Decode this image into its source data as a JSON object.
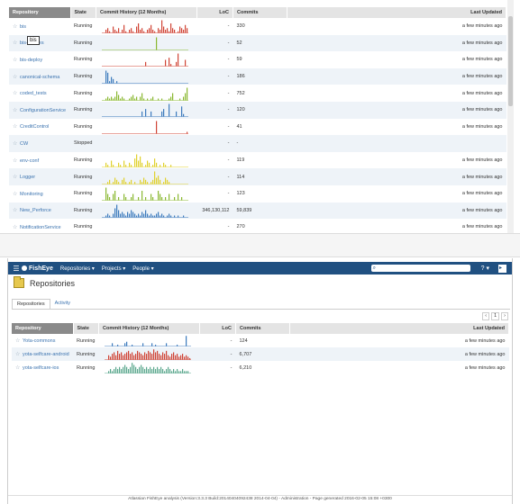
{
  "colors": {
    "brand": "#205081",
    "link": "#3b73af",
    "red": "#d04436",
    "blue": "#3d7bbd",
    "green": "#8ab831",
    "yellow": "#e0d12e",
    "teal": "#5aa78d",
    "gray": "#999999"
  },
  "columns": {
    "repository": "Repository",
    "state": "State",
    "commit_history": "Commit History (12 Months)",
    "loc": "LoC",
    "commits": "Commits",
    "last_updated": "Last Updated"
  },
  "tooltip": "bis",
  "top_rows": [
    {
      "name": "bis",
      "state": "Running",
      "loc": "-",
      "commits": "330",
      "updated": "a few minutes ago",
      "color": "red",
      "bars": [
        0,
        0,
        2,
        3,
        1,
        0,
        4,
        2,
        1,
        3,
        0,
        2,
        5,
        1,
        0,
        2,
        3,
        1,
        0,
        4,
        6,
        2,
        3,
        1,
        0,
        2,
        3,
        5,
        2,
        1,
        0,
        3,
        2,
        8,
        4,
        2,
        3,
        1,
        6,
        3,
        2,
        0,
        1,
        4,
        3,
        2,
        5,
        3
      ]
    },
    {
      "name": "bis-images",
      "state": "Running",
      "loc": "-",
      "commits": "52",
      "updated": "a few minutes ago",
      "color": "green",
      "bars": [
        0,
        0,
        0,
        0,
        0,
        0,
        0,
        0,
        0,
        0,
        0,
        0,
        0,
        0,
        0,
        0,
        0,
        0,
        0,
        0,
        0,
        0,
        0,
        0,
        0,
        0,
        0,
        0,
        0,
        0,
        8,
        0,
        0,
        0,
        0,
        0,
        0,
        0,
        0,
        0,
        0,
        0,
        0,
        0,
        0,
        0,
        0,
        0
      ]
    },
    {
      "name": "bis-deploy",
      "state": "Running",
      "loc": "-",
      "commits": "59",
      "updated": "a few minutes ago",
      "color": "red",
      "bars": [
        0,
        0,
        0,
        0,
        0,
        0,
        0,
        0,
        0,
        0,
        0,
        0,
        0,
        0,
        0,
        0,
        0,
        0,
        0,
        0,
        0,
        0,
        0,
        0,
        2,
        0,
        0,
        0,
        0,
        0,
        0,
        0,
        0,
        0,
        0,
        3,
        0,
        4,
        1,
        0,
        0,
        2,
        6,
        0,
        0,
        0,
        3,
        0
      ]
    },
    {
      "name": "canonical-schema",
      "state": "Running",
      "loc": "-",
      "commits": "186",
      "updated": "a few minutes ago",
      "color": "blue",
      "bars": [
        0,
        0,
        6,
        5,
        1,
        3,
        2,
        0,
        1,
        0,
        0,
        0,
        0,
        0,
        0,
        0,
        0,
        0,
        0,
        0,
        0,
        0,
        0,
        0,
        0,
        0,
        0,
        0,
        0,
        0,
        0,
        0,
        0,
        0,
        0,
        0,
        0,
        0,
        0,
        0,
        0,
        0,
        0,
        0,
        0,
        0,
        0,
        0
      ]
    },
    {
      "name": "coded_tests",
      "state": "Running",
      "loc": "-",
      "commits": "752",
      "updated": "a few minutes ago",
      "color": "green",
      "bars": [
        0,
        0,
        1,
        2,
        1,
        2,
        1,
        2,
        5,
        3,
        1,
        2,
        1,
        0,
        0,
        1,
        2,
        3,
        1,
        2,
        0,
        2,
        4,
        1,
        0,
        1,
        0,
        1,
        2,
        0,
        0,
        1,
        0,
        1,
        0,
        0,
        0,
        1,
        2,
        4,
        0,
        0,
        0,
        1,
        0,
        2,
        4,
        7
      ]
    },
    {
      "name": "ConfigurationService",
      "state": "Running",
      "loc": "-",
      "commits": "120",
      "updated": "a few minutes ago",
      "color": "blue",
      "bars": [
        0,
        0,
        0,
        0,
        0,
        0,
        0,
        0,
        0,
        0,
        0,
        0,
        0,
        0,
        0,
        0,
        0,
        0,
        0,
        0,
        0,
        0,
        2,
        0,
        3,
        0,
        0,
        2,
        0,
        0,
        0,
        0,
        0,
        2,
        3,
        0,
        0,
        5,
        0,
        0,
        0,
        2,
        0,
        0,
        4,
        1,
        0,
        0
      ]
    },
    {
      "name": "CreditControl",
      "state": "Running",
      "loc": "-",
      "commits": "41",
      "updated": "a few minutes ago",
      "color": "red",
      "bars": [
        0,
        0,
        0,
        0,
        0,
        0,
        0,
        0,
        0,
        0,
        0,
        0,
        0,
        0,
        0,
        0,
        0,
        0,
        0,
        0,
        0,
        0,
        0,
        0,
        0,
        0,
        0,
        0,
        0,
        0,
        7,
        0,
        0,
        0,
        0,
        0,
        0,
        0,
        0,
        0,
        0,
        0,
        0,
        0,
        0,
        0,
        0,
        1
      ]
    },
    {
      "name": "CW",
      "state": "Stopped",
      "loc": "-",
      "commits": "-",
      "updated": "",
      "color": "gray",
      "bars": []
    },
    {
      "name": "env-conf",
      "state": "Running",
      "loc": "-",
      "commits": "119",
      "updated": "a few minutes ago",
      "color": "yellow",
      "bars": [
        0,
        0,
        2,
        1,
        0,
        3,
        1,
        0,
        0,
        2,
        1,
        0,
        3,
        1,
        0,
        2,
        1,
        0,
        4,
        6,
        3,
        5,
        2,
        0,
        1,
        3,
        2,
        0,
        1,
        4,
        2,
        0,
        1,
        0,
        2,
        1,
        0,
        0,
        1,
        0,
        0,
        0,
        0,
        0,
        0,
        0,
        0,
        0
      ]
    },
    {
      "name": "Logger",
      "state": "Running",
      "loc": "-",
      "commits": "114",
      "updated": "a few minutes ago",
      "color": "yellow",
      "bars": [
        0,
        0,
        0,
        1,
        2,
        0,
        1,
        3,
        2,
        1,
        0,
        2,
        3,
        1,
        0,
        1,
        2,
        0,
        1,
        0,
        0,
        2,
        1,
        3,
        2,
        1,
        0,
        1,
        2,
        6,
        3,
        4,
        2,
        0,
        1,
        3,
        2,
        1,
        0,
        0,
        0,
        0,
        0,
        0,
        0,
        0,
        0,
        0
      ]
    },
    {
      "name": "Monitoring",
      "state": "Running",
      "loc": "-",
      "commits": "123",
      "updated": "a few minutes ago",
      "color": "green",
      "bars": [
        0,
        0,
        4,
        2,
        1,
        0,
        2,
        3,
        0,
        1,
        0,
        0,
        2,
        1,
        0,
        0,
        1,
        2,
        0,
        0,
        1,
        0,
        3,
        0,
        1,
        0,
        0,
        2,
        1,
        0,
        0,
        3,
        2,
        1,
        0,
        1,
        0,
        2,
        0,
        0,
        1,
        0,
        2,
        0,
        1,
        0,
        0,
        0
      ]
    },
    {
      "name": "New_Perforce",
      "state": "Running",
      "loc": "346,130,112",
      "commits": "59,839",
      "updated": "a few minutes ago",
      "color": "blue",
      "bars": [
        0,
        0,
        1,
        2,
        1,
        0,
        2,
        5,
        7,
        4,
        2,
        3,
        2,
        1,
        3,
        2,
        4,
        3,
        2,
        1,
        2,
        1,
        3,
        2,
        4,
        2,
        1,
        2,
        1,
        1,
        2,
        3,
        1,
        2,
        1,
        0,
        1,
        2,
        1,
        0,
        1,
        0,
        1,
        0,
        0,
        1,
        0,
        0
      ]
    },
    {
      "name": "NotificationService",
      "state": "Running",
      "loc": "-",
      "commits": "270",
      "updated": "a few minutes ago",
      "color": "red",
      "bars": [
        0,
        0,
        0,
        0,
        0,
        0,
        0,
        0,
        0,
        0,
        0,
        0,
        0,
        0,
        0,
        0,
        0,
        0,
        0,
        0,
        0,
        0,
        0,
        0,
        0,
        0,
        0,
        0,
        0,
        0,
        0,
        0,
        0,
        0,
        0,
        0,
        0,
        0,
        0,
        0,
        0,
        0,
        0,
        0,
        0,
        0,
        0,
        0
      ]
    }
  ],
  "header": {
    "app_name": "FishEye",
    "nav": [
      "Repositories ▾",
      "Projects ▾",
      "People ▾"
    ],
    "help": "? ▾"
  },
  "page_title": "Repositories",
  "tabs": [
    "Repositories",
    "Activity"
  ],
  "pager": {
    "prev": "‹",
    "page": "1",
    "next": "›"
  },
  "bottom_rows": [
    {
      "name": "Yota-commons",
      "state": "Running",
      "loc": "-",
      "commits": "124",
      "updated": "a few minutes ago",
      "color": "blue",
      "bars": [
        0,
        0,
        0,
        0,
        2,
        0,
        0,
        1,
        0,
        0,
        0,
        2,
        3,
        0,
        0,
        1,
        0,
        0,
        0,
        0,
        0,
        2,
        0,
        0,
        0,
        0,
        2,
        0,
        1,
        0,
        0,
        0,
        0,
        0,
        2,
        0,
        0,
        0,
        0,
        0,
        1,
        0,
        0,
        0,
        0,
        7,
        0,
        0
      ]
    },
    {
      "name": "yota-selfcare-android",
      "state": "Running",
      "loc": "-",
      "commits": "6,707",
      "updated": "a few minutes ago",
      "color": "red",
      "bars": [
        0,
        0,
        3,
        2,
        4,
        5,
        3,
        6,
        4,
        5,
        3,
        4,
        5,
        6,
        4,
        5,
        3,
        4,
        6,
        5,
        4,
        3,
        5,
        4,
        6,
        5,
        4,
        7,
        5,
        6,
        4,
        3,
        5,
        4,
        6,
        3,
        2,
        4,
        5,
        3,
        4,
        2,
        3,
        4,
        2,
        3,
        2,
        1
      ]
    },
    {
      "name": "yota-selfcare-ios",
      "state": "Running",
      "loc": "-",
      "commits": "6,210",
      "updated": "a few minutes ago",
      "color": "teal",
      "bars": [
        0,
        0,
        1,
        2,
        1,
        2,
        3,
        2,
        3,
        2,
        3,
        4,
        3,
        2,
        3,
        5,
        4,
        3,
        2,
        3,
        4,
        3,
        2,
        3,
        2,
        3,
        2,
        3,
        2,
        3,
        2,
        3,
        2,
        1,
        2,
        3,
        2,
        1,
        2,
        1,
        2,
        1,
        1,
        2,
        1,
        1,
        1,
        0
      ]
    }
  ],
  "footer": "Atlassian FishEye analysis (Version:3.3.3 Build:20140404092438 2014-04-04) - Administration - Page generated 2016-02-05 15:08 +0300"
}
